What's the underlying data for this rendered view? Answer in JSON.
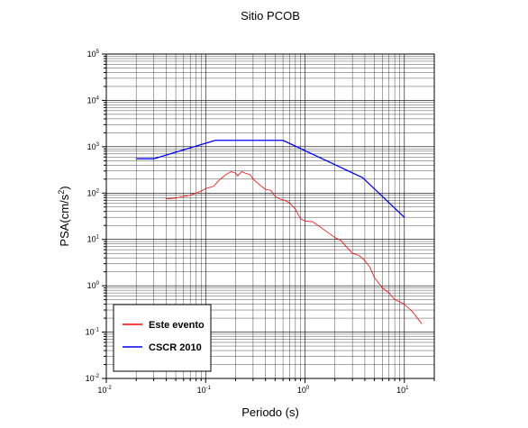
{
  "chart_data": {
    "type": "line",
    "title": "Sitio PCOB",
    "xlabel": "Periodo (s)",
    "ylabel_base": "PSA(cm/s",
    "ylabel_sup": "2",
    "ylabel_end": ")",
    "x_scale": "log",
    "y_scale": "log",
    "xlim": [
      0.01,
      20
    ],
    "ylim": [
      0.01,
      100000
    ],
    "grid": true,
    "legend_position": "bottom-left",
    "x_ticks": [
      {
        "value": 0.01,
        "base": "10",
        "exp": "-2"
      },
      {
        "value": 0.1,
        "base": "10",
        "exp": "-1"
      },
      {
        "value": 1,
        "base": "10",
        "exp": "0"
      },
      {
        "value": 10,
        "base": "10",
        "exp": "1"
      }
    ],
    "y_ticks": [
      {
        "value": 0.01,
        "base": "10",
        "exp": "-2"
      },
      {
        "value": 0.1,
        "base": "10",
        "exp": "-1"
      },
      {
        "value": 1,
        "base": "10",
        "exp": "0"
      },
      {
        "value": 10,
        "base": "10",
        "exp": "1"
      },
      {
        "value": 100,
        "base": "10",
        "exp": "2"
      },
      {
        "value": 1000,
        "base": "10",
        "exp": "3"
      },
      {
        "value": 10000,
        "base": "10",
        "exp": "4"
      },
      {
        "value": 100000,
        "base": "10",
        "exp": "5"
      }
    ],
    "series": [
      {
        "name": "Este evento",
        "color": "#ff0000",
        "points": [
          [
            0.04,
            75
          ],
          [
            0.05,
            78
          ],
          [
            0.06,
            85
          ],
          [
            0.07,
            90
          ],
          [
            0.08,
            100
          ],
          [
            0.09,
            110
          ],
          [
            0.1,
            125
          ],
          [
            0.12,
            140
          ],
          [
            0.14,
            200
          ],
          [
            0.16,
            250
          ],
          [
            0.18,
            290
          ],
          [
            0.2,
            270
          ],
          [
            0.21,
            235
          ],
          [
            0.23,
            290
          ],
          [
            0.25,
            270
          ],
          [
            0.28,
            250
          ],
          [
            0.3,
            200
          ],
          [
            0.35,
            150
          ],
          [
            0.4,
            120
          ],
          [
            0.45,
            115
          ],
          [
            0.5,
            85
          ],
          [
            0.55,
            75
          ],
          [
            0.6,
            72
          ],
          [
            0.7,
            62
          ],
          [
            0.8,
            45
          ],
          [
            0.9,
            28
          ],
          [
            1.0,
            25
          ],
          [
            1.2,
            24
          ],
          [
            1.5,
            17
          ],
          [
            2.0,
            11
          ],
          [
            2.3,
            9.5
          ],
          [
            2.6,
            7
          ],
          [
            3.0,
            5
          ],
          [
            3.5,
            4.5
          ],
          [
            4.0,
            3.5
          ],
          [
            4.5,
            2.5
          ],
          [
            5.0,
            1.5
          ],
          [
            6.0,
            0.9
          ],
          [
            7.0,
            0.7
          ],
          [
            8.0,
            0.5
          ],
          [
            9.0,
            0.45
          ],
          [
            10.0,
            0.4
          ],
          [
            12.0,
            0.28
          ],
          [
            15.0,
            0.15
          ]
        ]
      },
      {
        "name": "CSCR 2010",
        "color": "#0000ff",
        "points": [
          [
            0.02,
            550
          ],
          [
            0.03,
            550
          ],
          [
            0.125,
            1375
          ],
          [
            0.6,
            1375
          ],
          [
            3.8,
            215
          ],
          [
            10.0,
            30
          ]
        ]
      }
    ]
  }
}
